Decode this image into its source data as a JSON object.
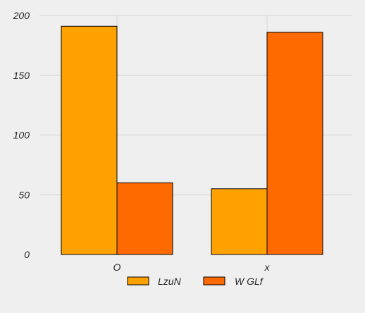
{
  "chart_data": {
    "type": "bar",
    "categories": [
      "O",
      "x"
    ],
    "series": [
      {
        "name": "LzuN",
        "values": [
          191,
          55
        ],
        "color": "#FFA200"
      },
      {
        "name": "W GLf",
        "values": [
          60,
          186
        ],
        "color": "#FF6A00"
      }
    ],
    "title": "",
    "xlabel": "",
    "ylabel": "",
    "ylim": [
      0,
      200
    ],
    "yticks": [
      0,
      50,
      100,
      150,
      200
    ],
    "grid": true,
    "legend_position": "bottom-center",
    "background_color": "#F0EFEF",
    "grid_color": "#D3D3D3",
    "bar_edge_color": "#000000"
  }
}
